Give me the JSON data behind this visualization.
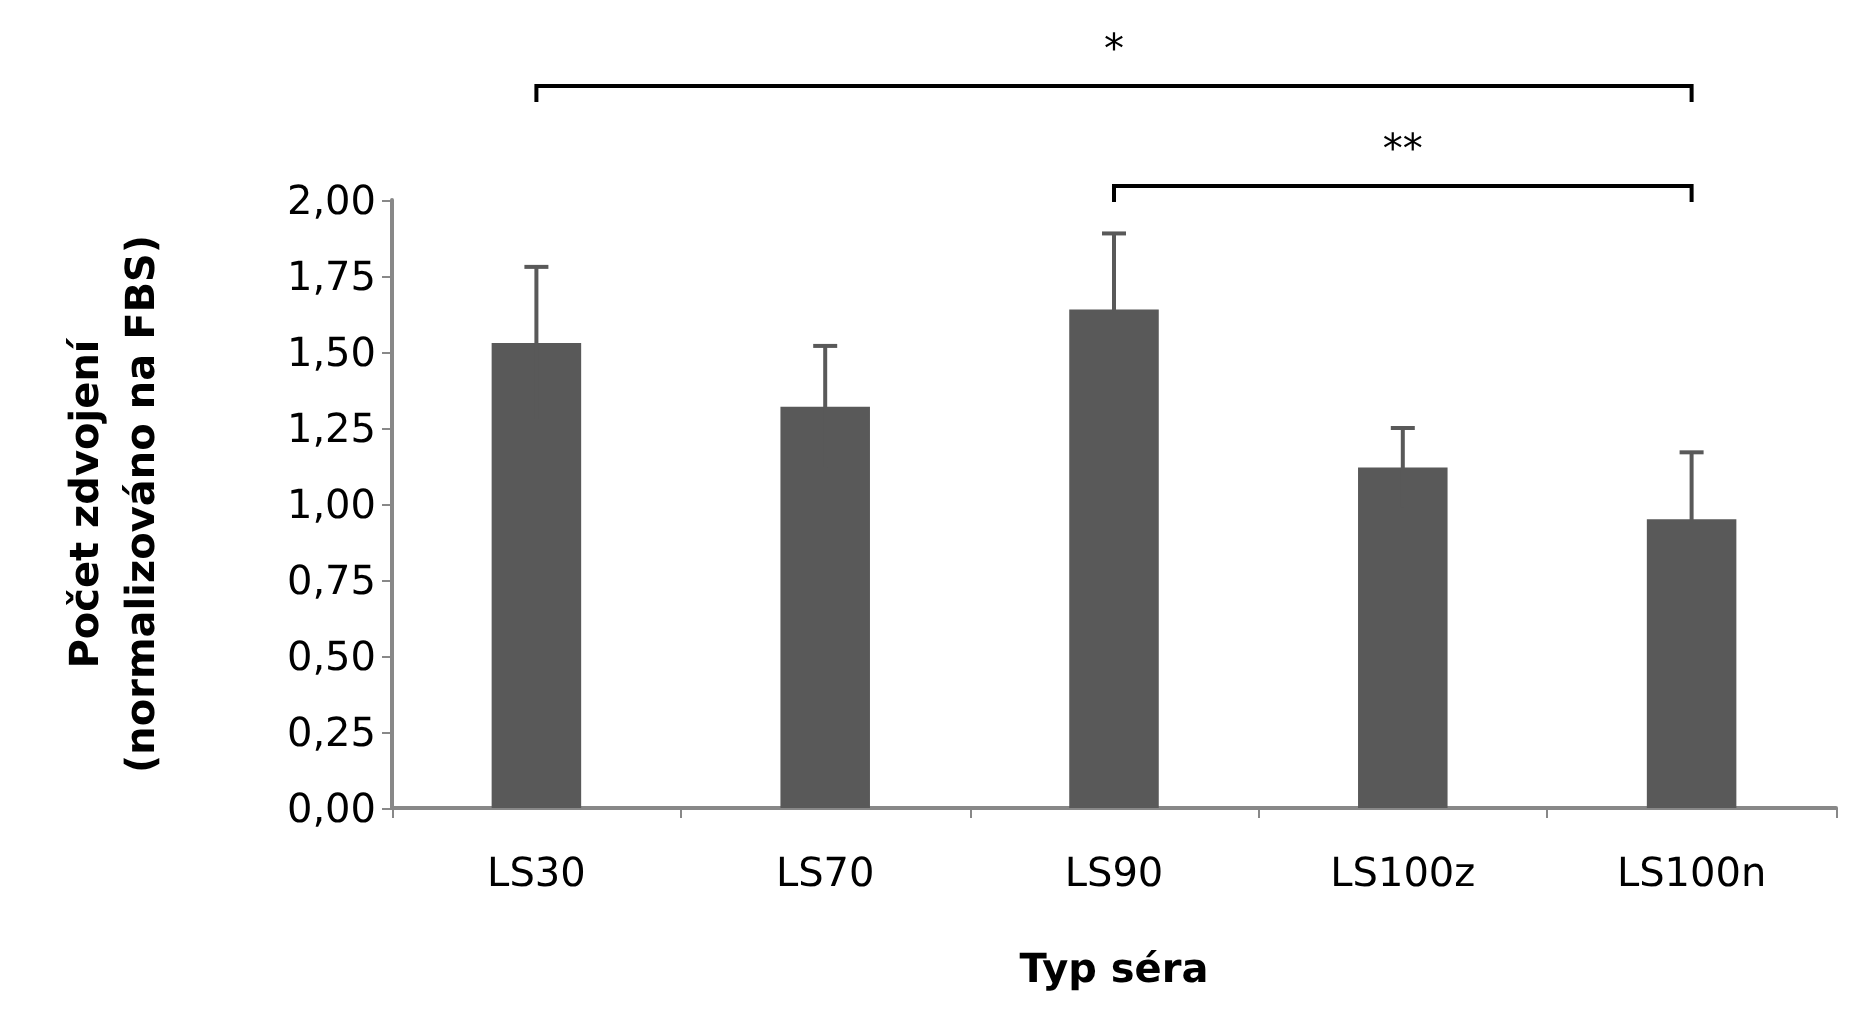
{
  "chart_data": {
    "type": "bar",
    "xlabel": "Typ séra",
    "ylabel": "Počet zdvojení\n(normalizováno na FBS)",
    "categories": [
      "LS30",
      "LS70",
      "LS90",
      "LS100z",
      "LS100n"
    ],
    "values": [
      1.53,
      1.32,
      1.64,
      1.12,
      0.95
    ],
    "errors": [
      0.25,
      0.2,
      0.25,
      0.13,
      0.22
    ],
    "color": "#595959",
    "ylim": [
      0,
      2
    ],
    "yticks": [
      {
        "value": 0,
        "label": "0,00"
      },
      {
        "value": 0.25,
        "label": "0,25"
      },
      {
        "value": 0.5,
        "label": "0,50"
      },
      {
        "value": 0.75,
        "label": "0,75"
      },
      {
        "value": 1,
        "label": "1,00"
      },
      {
        "value": 1.25,
        "label": "1,25"
      },
      {
        "value": 1.5,
        "label": "1,50"
      },
      {
        "value": 1.75,
        "label": "1,75"
      },
      {
        "value": 2,
        "label": "2,00"
      }
    ],
    "grid": false,
    "annotations": [
      "*",
      "**"
    ]
  }
}
